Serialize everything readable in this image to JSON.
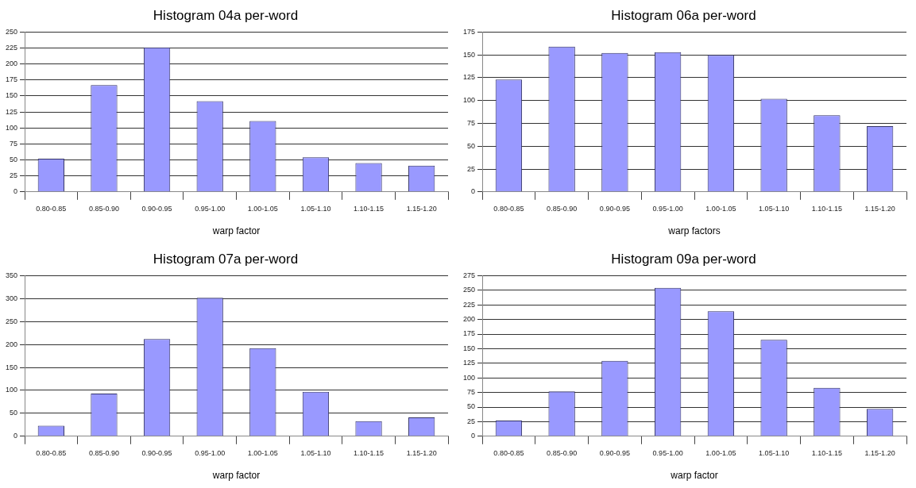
{
  "chart_data": [
    {
      "type": "bar",
      "title": "Histogram 04a per-word",
      "xlabel": "warp factor",
      "categories": [
        "0.80-0.85",
        "0.85-0.90",
        "0.90-0.95",
        "0.95-1.00",
        "1.00-1.05",
        "1.05-1.10",
        "1.10-1.15",
        "1.15-1.20"
      ],
      "values": [
        52,
        167,
        226,
        142,
        111,
        54,
        45,
        41
      ],
      "color": "#9999ff",
      "ylim": [
        0,
        250
      ],
      "yticks": [
        0,
        25,
        50,
        75,
        100,
        125,
        150,
        175,
        200,
        225,
        250
      ],
      "grid": "y",
      "legend": false
    },
    {
      "type": "bar",
      "title": "Histogram 06a per-word",
      "xlabel": "warp factors",
      "categories": [
        "0.80-0.85",
        "0.85-0.90",
        "0.90-0.95",
        "0.95-1.00",
        "1.00-1.05",
        "1.05-1.10",
        "1.10-1.15",
        "1.15-1.20"
      ],
      "values": [
        123,
        159,
        152,
        153,
        150,
        102,
        84,
        72
      ],
      "color": "#9999ff",
      "ylim": [
        0,
        175
      ],
      "yticks": [
        0,
        25,
        50,
        75,
        100,
        125,
        150,
        175
      ],
      "grid": "y",
      "legend": false
    },
    {
      "type": "bar",
      "title": "Histogram 07a per-word",
      "xlabel": "warp factor",
      "categories": [
        "0.80-0.85",
        "0.85-0.90",
        "0.90-0.95",
        "0.95-1.00",
        "1.00-1.05",
        "1.05-1.10",
        "1.10-1.15",
        "1.15-1.20"
      ],
      "values": [
        23,
        93,
        212,
        302,
        192,
        97,
        33,
        41
      ],
      "color": "#9999ff",
      "ylim": [
        0,
        350
      ],
      "yticks": [
        0,
        50,
        100,
        150,
        200,
        250,
        300,
        350
      ],
      "grid": "y",
      "legend": false
    },
    {
      "type": "bar",
      "title": "Histogram 09a per-word",
      "xlabel": "warp factor",
      "categories": [
        "0.80-0.85",
        "0.85-0.90",
        "0.90-0.95",
        "0.95-1.00",
        "1.00-1.05",
        "1.05-1.10",
        "1.10-1.15",
        "1.15-1.20"
      ],
      "values": [
        27,
        77,
        129,
        254,
        214,
        165,
        83,
        47
      ],
      "color": "#9999ff",
      "ylim": [
        0,
        275
      ],
      "yticks": [
        0,
        25,
        50,
        75,
        100,
        125,
        150,
        175,
        200,
        225,
        250,
        275
      ],
      "grid": "y",
      "legend": false
    }
  ]
}
